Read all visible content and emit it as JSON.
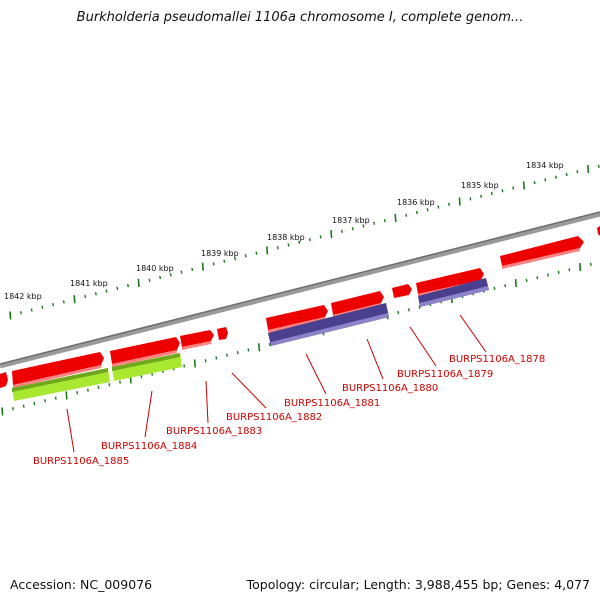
{
  "title": "Burkholderia pseudomallei 1106a chromosome I, complete genom...",
  "footer": {
    "accession": "Accession: NC_009076",
    "summary": "Topology: circular; Length: 3,988,455 bp; Genes: 4,077"
  },
  "colors": {
    "backbone": "#808080",
    "forward_gene": "#ee0000",
    "forward_gene_light": "#ff7a7a",
    "reverse_gene_purple": "#4a3f8f",
    "reverse_gene_purple_light": "#8c84c8",
    "reverse_gene_green": "#a8e830",
    "reverse_gene_green_dark": "#6fa81c",
    "ticks": "#1a7a1a",
    "gene_label": "#cc0000"
  },
  "kbp_labels": [
    "1834 kbp",
    "1835 kbp",
    "1836 kbp",
    "1837 kbp",
    "1838 kbp",
    "1839 kbp",
    "1840 kbp",
    "1841 kbp",
    "1842 kbp"
  ],
  "gene_labels": [
    "BURPS1106A_1878",
    "BURPS1106A_1879",
    "BURPS1106A_1880",
    "BURPS1106A_1881",
    "BURPS1106A_1882",
    "BURPS1106A_1883",
    "BURPS1106A_1884",
    "BURPS1106A_1885"
  ]
}
